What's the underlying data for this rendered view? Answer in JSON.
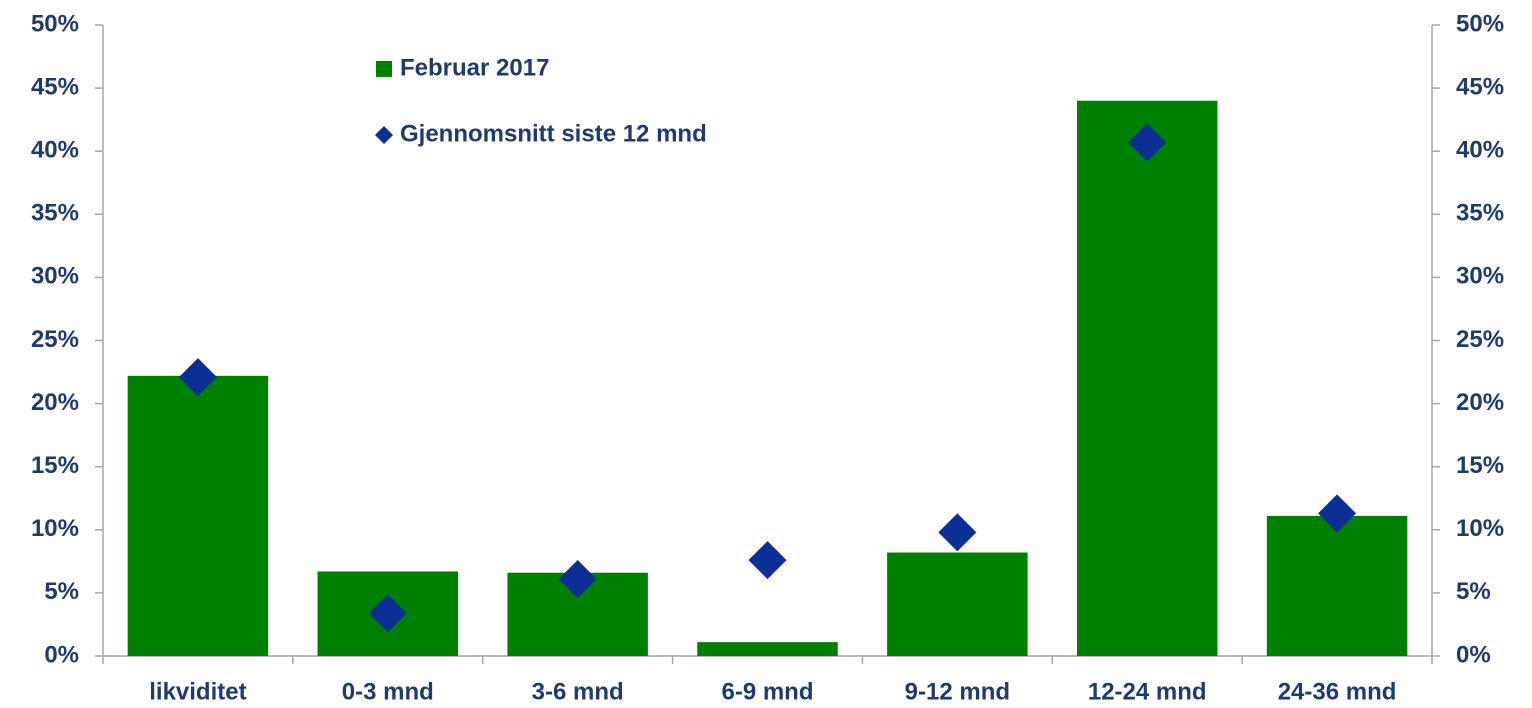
{
  "chart_data": {
    "type": "bar",
    "categories": [
      "likviditet",
      "0-3 mnd",
      "3-6 mnd",
      "6-9 mnd",
      "9-12 mnd",
      "12-24 mnd",
      "24-36 mnd"
    ],
    "series": [
      {
        "name": "Februar 2017",
        "type": "bar",
        "color": "#008000",
        "values": [
          22.2,
          6.7,
          6.6,
          1.1,
          8.2,
          44.0,
          11.1
        ]
      },
      {
        "name": "Gjennomsnitt siste 12 mnd",
        "type": "diamond",
        "color": "#0b2f95",
        "axis": "y2",
        "values": [
          22.1,
          3.4,
          6.1,
          7.6,
          9.8,
          40.7,
          11.3
        ]
      }
    ],
    "ylim": [
      0,
      50
    ],
    "yticks": [
      {
        "value": 0,
        "label": "0%"
      },
      {
        "value": 5,
        "label": "5%"
      },
      {
        "value": 10,
        "label": "10%"
      },
      {
        "value": 15,
        "label": "15%"
      },
      {
        "value": 20,
        "label": "20%"
      },
      {
        "value": 25,
        "label": "25%"
      },
      {
        "value": 30,
        "label": "30%"
      },
      {
        "value": 35,
        "label": "35%"
      },
      {
        "value": 40,
        "label": "40%"
      },
      {
        "value": 45,
        "label": "45%"
      },
      {
        "value": 50,
        "label": "50%"
      }
    ],
    "y2lim": [
      0,
      50
    ],
    "y2ticks": [
      {
        "value": 0,
        "label": "0%"
      },
      {
        "value": 5,
        "label": "5%"
      },
      {
        "value": 10,
        "label": "10%"
      },
      {
        "value": 15,
        "label": "15%"
      },
      {
        "value": 20,
        "label": "20%"
      },
      {
        "value": 25,
        "label": "25%"
      },
      {
        "value": 30,
        "label": "30%"
      },
      {
        "value": 35,
        "label": "35%"
      },
      {
        "value": 40,
        "label": "40%"
      },
      {
        "value": 45,
        "label": "45%"
      },
      {
        "value": 50,
        "label": "50%"
      }
    ],
    "grid": false
  }
}
